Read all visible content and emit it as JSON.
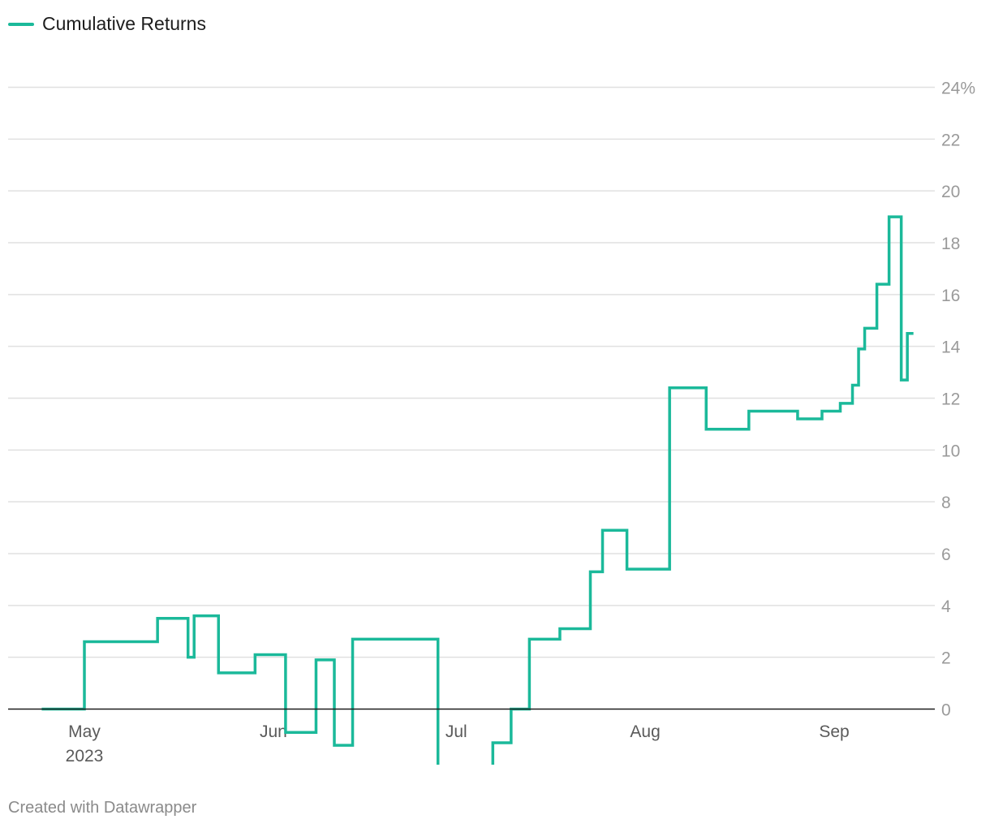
{
  "legend": {
    "label": "Cumulative Returns"
  },
  "footer": {
    "credit": "Created with Datawrapper"
  },
  "colors": {
    "series": "#1bb99a",
    "grid": "#e0e0e0",
    "baseline": "#1d1d1d"
  },
  "chart_data": {
    "type": "line",
    "interpolation": "step",
    "title": "",
    "xlabel": "",
    "ylabel": "",
    "ylim": [
      -2.2,
      24
    ],
    "y_ticks": [
      0,
      2,
      4,
      6,
      8,
      10,
      12,
      14,
      16,
      18,
      20,
      22,
      24
    ],
    "y_tick_labels": [
      "0",
      "2",
      "4",
      "6",
      "8",
      "10",
      "12",
      "14",
      "16",
      "18",
      "20",
      "22",
      "24%"
    ],
    "x_ticks": [
      {
        "date": "2023-05-01",
        "label": "May",
        "sublabel": "2023"
      },
      {
        "date": "2023-06-01",
        "label": "Jun",
        "sublabel": ""
      },
      {
        "date": "2023-07-01",
        "label": "Jul",
        "sublabel": ""
      },
      {
        "date": "2023-08-01",
        "label": "Aug",
        "sublabel": ""
      },
      {
        "date": "2023-09-01",
        "label": "Sep",
        "sublabel": ""
      }
    ],
    "grid": true,
    "legend_position": "top-left",
    "series": [
      {
        "name": "Cumulative Returns",
        "points": [
          [
            "2023-04-24",
            0
          ],
          [
            "2023-05-01",
            2.6
          ],
          [
            "2023-05-13",
            3.5
          ],
          [
            "2023-05-18",
            2.0
          ],
          [
            "2023-05-19",
            3.6
          ],
          [
            "2023-05-23",
            1.4
          ],
          [
            "2023-05-29",
            2.1
          ],
          [
            "2023-06-03",
            -0.9
          ],
          [
            "2023-06-08",
            1.9
          ],
          [
            "2023-06-11",
            -1.4
          ],
          [
            "2023-06-14",
            2.7
          ],
          [
            "2023-06-28",
            -2.2
          ],
          [
            "2023-07-07",
            -1.3
          ],
          [
            "2023-07-10",
            0
          ],
          [
            "2023-07-13",
            2.7
          ],
          [
            "2023-07-18",
            3.1
          ],
          [
            "2023-07-23",
            5.3
          ],
          [
            "2023-07-25",
            6.9
          ],
          [
            "2023-07-29",
            5.4
          ],
          [
            "2023-08-05",
            12.4
          ],
          [
            "2023-08-11",
            10.8
          ],
          [
            "2023-08-18",
            11.5
          ],
          [
            "2023-08-26",
            11.2
          ],
          [
            "2023-08-30",
            11.5
          ],
          [
            "2023-09-02",
            11.8
          ],
          [
            "2023-09-04",
            12.5
          ],
          [
            "2023-09-05",
            13.9
          ],
          [
            "2023-09-06",
            14.7
          ],
          [
            "2023-09-08",
            16.4
          ],
          [
            "2023-09-10",
            19.0
          ],
          [
            "2023-09-12",
            12.7
          ],
          [
            "2023-09-13",
            14.5
          ],
          [
            "2023-09-14",
            14.5
          ]
        ]
      }
    ]
  }
}
